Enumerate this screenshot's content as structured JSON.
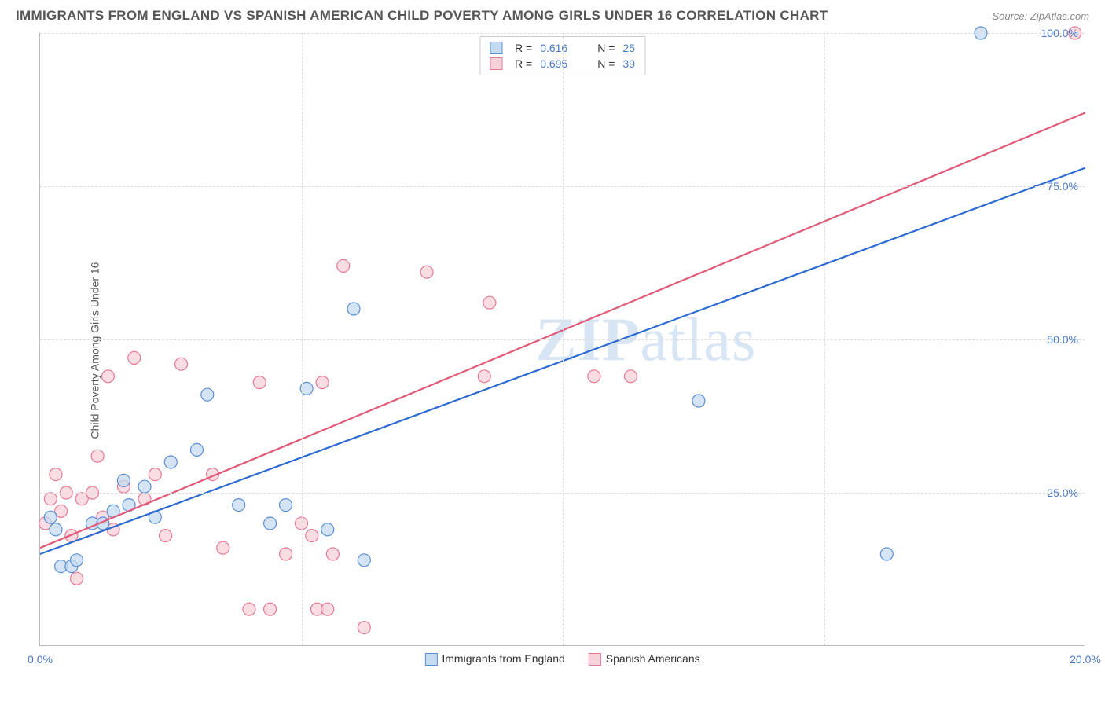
{
  "title": "IMMIGRANTS FROM ENGLAND VS SPANISH AMERICAN CHILD POVERTY AMONG GIRLS UNDER 16 CORRELATION CHART",
  "source": "Source: ZipAtlas.com",
  "watermark": "ZIPatlas",
  "chart": {
    "type": "scatter",
    "ylabel": "Child Poverty Among Girls Under 16",
    "xlim": [
      0,
      20
    ],
    "ylim": [
      0,
      100
    ],
    "xtick_labels": [
      "0.0%",
      "20.0%"
    ],
    "xtick_positions": [
      0,
      20
    ],
    "ytick_labels": [
      "25.0%",
      "50.0%",
      "75.0%",
      "100.0%"
    ],
    "ytick_positions": [
      25,
      50,
      75,
      100
    ],
    "x_minor_ticks": [
      5,
      10,
      15
    ],
    "grid_color": "#dddddd",
    "background_color": "#ffffff",
    "point_radius": 8,
    "series": [
      {
        "name": "Immigrants from England",
        "fill": "#c5dbf2",
        "stroke": "#5a8fd6",
        "line_color": "#2e6bd1",
        "R": "0.616",
        "N": "25",
        "trend": {
          "x1": 0,
          "y1": 15,
          "x2": 20,
          "y2": 78
        },
        "points": [
          [
            0.2,
            21
          ],
          [
            0.3,
            19
          ],
          [
            0.4,
            13
          ],
          [
            0.6,
            13
          ],
          [
            0.7,
            14
          ],
          [
            1.0,
            20
          ],
          [
            1.2,
            20
          ],
          [
            1.4,
            22
          ],
          [
            1.6,
            27
          ],
          [
            1.7,
            23
          ],
          [
            2.0,
            26
          ],
          [
            2.2,
            21
          ],
          [
            2.5,
            30
          ],
          [
            3.0,
            32
          ],
          [
            3.2,
            41
          ],
          [
            3.8,
            23
          ],
          [
            4.4,
            20
          ],
          [
            4.7,
            23
          ],
          [
            5.1,
            42
          ],
          [
            5.5,
            19
          ],
          [
            6.0,
            55
          ],
          [
            6.2,
            14
          ],
          [
            12.6,
            40
          ],
          [
            16.2,
            15
          ],
          [
            18.0,
            100
          ]
        ]
      },
      {
        "name": "Spanish Americans",
        "fill": "#f7d1da",
        "stroke": "#e47a94",
        "line_color": "#e05a7a",
        "R": "0.695",
        "N": "39",
        "trend": {
          "x1": 0,
          "y1": 16,
          "x2": 20,
          "y2": 87
        },
        "points": [
          [
            0.1,
            20
          ],
          [
            0.2,
            24
          ],
          [
            0.3,
            28
          ],
          [
            0.4,
            22
          ],
          [
            0.5,
            25
          ],
          [
            0.6,
            18
          ],
          [
            0.7,
            11
          ],
          [
            0.8,
            24
          ],
          [
            1.0,
            25
          ],
          [
            1.1,
            31
          ],
          [
            1.2,
            21
          ],
          [
            1.3,
            44
          ],
          [
            1.4,
            19
          ],
          [
            1.6,
            26
          ],
          [
            1.8,
            47
          ],
          [
            2.0,
            24
          ],
          [
            2.2,
            28
          ],
          [
            2.4,
            18
          ],
          [
            2.7,
            46
          ],
          [
            3.3,
            28
          ],
          [
            3.5,
            16
          ],
          [
            4.0,
            6
          ],
          [
            4.2,
            43
          ],
          [
            4.4,
            6
          ],
          [
            4.7,
            15
          ],
          [
            5.0,
            20
          ],
          [
            5.2,
            18
          ],
          [
            5.3,
            6
          ],
          [
            5.4,
            43
          ],
          [
            5.5,
            6
          ],
          [
            5.6,
            15
          ],
          [
            5.8,
            62
          ],
          [
            6.2,
            3
          ],
          [
            7.4,
            61
          ],
          [
            8.5,
            44
          ],
          [
            8.6,
            56
          ],
          [
            10.6,
            44
          ],
          [
            11.3,
            44
          ],
          [
            19.8,
            100
          ]
        ]
      }
    ],
    "bottom_legend": [
      {
        "label": "Immigrants from England",
        "fill": "#c5dbf2",
        "stroke": "#5a8fd6"
      },
      {
        "label": "Spanish Americans",
        "fill": "#f7d1da",
        "stroke": "#e47a94"
      }
    ]
  }
}
